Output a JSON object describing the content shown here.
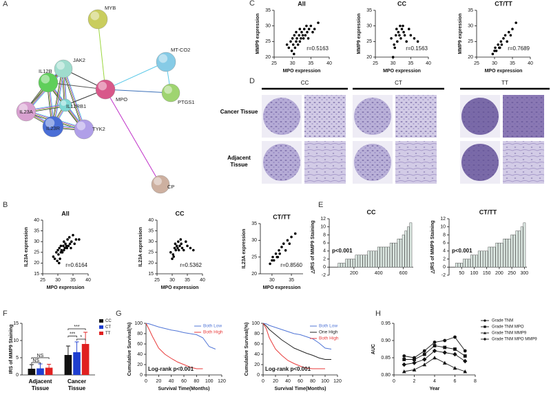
{
  "panels": [
    "A",
    "B",
    "C",
    "D",
    "E",
    "F",
    "G",
    "H"
  ],
  "network": {
    "nodes": [
      {
        "label": "MYB"
      },
      {
        "label": "MT-CO2"
      },
      {
        "label": "JAK2"
      },
      {
        "label": "IL12B"
      },
      {
        "label": "MPO"
      },
      {
        "label": "PTGS1"
      },
      {
        "label": "IL12RB1"
      },
      {
        "label": "IL23A"
      },
      {
        "label": "TYK2"
      },
      {
        "label": "IL23R"
      },
      {
        "label": "CP"
      }
    ]
  },
  "histology": {
    "genotypes": [
      "CC",
      "CT",
      "TT"
    ],
    "rows": [
      "Cancer Tissue",
      "Adjacent Tissue"
    ]
  },
  "chart_data": [
    {
      "type": "scatter",
      "title": "All",
      "xlabel": "MPO expression",
      "ylabel": "MMP9 expression",
      "annotation": "r=0.5163",
      "xlim": [
        25,
        40
      ],
      "xticks": [
        25,
        30,
        35,
        40
      ],
      "ylim": [
        20,
        35
      ],
      "yticks": [
        20,
        25,
        30,
        35
      ],
      "series": [
        {
          "color": "#000000",
          "x": [
            28.5,
            29,
            29.5,
            29.8,
            30,
            30.2,
            30.5,
            30.7,
            31,
            31,
            31.2,
            31.5,
            31.8,
            32,
            32,
            32.3,
            32.5,
            32.8,
            33,
            33.2,
            33.5,
            33.8,
            34,
            34.3,
            34.5,
            35,
            35.5,
            36,
            37,
            30.4
          ],
          "values": [
            24,
            23,
            25,
            22,
            26,
            24,
            27,
            23,
            25,
            28,
            26,
            24,
            27,
            25,
            29,
            26,
            28,
            27,
            26,
            29,
            27,
            30,
            28,
            26,
            29,
            30,
            28,
            29,
            31,
            21
          ]
        }
      ]
    },
    {
      "type": "scatter",
      "title": "CC",
      "xlabel": "MPO expression",
      "ylabel": "MMP9 expression",
      "annotation": "r=0.1563",
      "xlim": [
        25,
        40
      ],
      "xticks": [
        25,
        30,
        35,
        40
      ],
      "ylim": [
        20,
        35
      ],
      "yticks": [
        20,
        25,
        30,
        35
      ],
      "series": [
        {
          "color": "#000000",
          "x": [
            29.5,
            30,
            30.3,
            30.8,
            31,
            31.2,
            31.5,
            31.8,
            32,
            32.2,
            32.5,
            33,
            33.3,
            33.8,
            34.5,
            35,
            36,
            37,
            30.5,
            32.8
          ],
          "values": [
            26,
            20,
            24,
            27,
            29,
            25,
            28,
            27,
            30,
            26,
            29,
            28,
            27,
            25,
            29,
            27,
            26,
            25,
            23,
            30
          ]
        }
      ]
    },
    {
      "type": "scatter",
      "title": "CT/TT",
      "xlabel": "MPO expression",
      "ylabel": "MMP9 expression",
      "annotation": "r=0.7689",
      "xlim": [
        25,
        40
      ],
      "xticks": [
        25,
        30,
        35,
        40
      ],
      "ylim": [
        20,
        35
      ],
      "yticks": [
        20,
        25,
        30,
        35
      ],
      "series": [
        {
          "color": "#000000",
          "x": [
            29.5,
            30,
            30.2,
            30.5,
            31,
            31.3,
            31.8,
            32,
            32.5,
            33,
            33.5,
            34,
            34.5,
            35,
            36,
            31.5
          ],
          "values": [
            21,
            22,
            23,
            22,
            24,
            23,
            25,
            24,
            26,
            27,
            25,
            28,
            27,
            29,
            31,
            23
          ]
        }
      ]
    },
    {
      "type": "scatter",
      "title": "All",
      "xlabel": "MPO expression",
      "ylabel": "IL23A expression",
      "annotation": "r=0.6164",
      "xlim": [
        25,
        40
      ],
      "xticks": [
        25,
        30,
        35,
        40
      ],
      "ylim": [
        15,
        40
      ],
      "yticks": [
        15,
        20,
        25,
        30,
        35,
        40
      ],
      "series": [
        {
          "color": "#000000",
          "x": [
            28.5,
            29,
            29.5,
            29.8,
            30,
            30.2,
            30.5,
            30.7,
            31,
            31,
            31.2,
            31.5,
            31.8,
            32,
            32,
            32.3,
            32.5,
            32.8,
            33,
            33.2,
            33.5,
            33.8,
            34,
            34.3,
            34.5,
            35,
            35.5,
            36,
            37,
            30.4
          ],
          "values": [
            23,
            22,
            25,
            21,
            26,
            24,
            27,
            22,
            25,
            28,
            26,
            25,
            28,
            26,
            30,
            27,
            29,
            28,
            27,
            31,
            28,
            32,
            29,
            27,
            30,
            33,
            29,
            31,
            31,
            20
          ]
        }
      ]
    },
    {
      "type": "scatter",
      "title": "CC",
      "xlabel": "MPO expression",
      "ylabel": "IL23A expression",
      "annotation": "r=0.5362",
      "xlim": [
        25,
        40
      ],
      "xticks": [
        25,
        30,
        35,
        40
      ],
      "ylim": [
        15,
        40
      ],
      "yticks": [
        15,
        20,
        25,
        30,
        35,
        40
      ],
      "series": [
        {
          "color": "#000000",
          "x": [
            29.5,
            30,
            30.3,
            30.8,
            31,
            31.2,
            31.5,
            31.8,
            32,
            32.2,
            32.5,
            33,
            33.3,
            33.8,
            34.5,
            35,
            36,
            37,
            30.5,
            32.8
          ],
          "values": [
            25,
            22,
            24,
            27,
            29,
            26,
            28,
            27,
            30,
            26,
            28,
            29,
            27,
            26,
            30,
            28,
            27,
            26,
            23,
            31
          ]
        }
      ]
    },
    {
      "type": "scatter",
      "title": "CT/TT",
      "xlabel": "MPO expression",
      "ylabel": "IL23A expression",
      "annotation": "r=0.8560",
      "xlim": [
        27,
        38
      ],
      "xticks": [
        30,
        35
      ],
      "ylim": [
        20,
        35
      ],
      "yticks": [
        20,
        25,
        30,
        35
      ],
      "series": [
        {
          "color": "#000000",
          "x": [
            29.5,
            30,
            30.2,
            30.5,
            31,
            31.3,
            31.8,
            32,
            32.5,
            33,
            33.5,
            34,
            34.5,
            35,
            36,
            31.5
          ],
          "values": [
            23,
            24,
            25,
            24,
            26,
            25,
            27,
            26,
            28,
            29,
            27,
            30,
            29,
            31,
            32,
            25
          ]
        }
      ]
    },
    {
      "type": "bar",
      "title": "CC",
      "ylabel": "△IRS of MMP9 Staining",
      "annotation": "p<0.001",
      "xlim": [
        0,
        680
      ],
      "xticks": [
        200,
        400,
        600
      ],
      "ylim": [
        -2,
        12
      ],
      "yticks": [
        -2,
        0,
        2,
        4,
        6,
        8,
        10,
        12
      ],
      "x": [
        20,
        40,
        60,
        80,
        100,
        120,
        140,
        160,
        180,
        200,
        220,
        240,
        260,
        280,
        300,
        320,
        340,
        360,
        380,
        400,
        420,
        440,
        460,
        480,
        500,
        520,
        540,
        560,
        580,
        600,
        620,
        640,
        660
      ],
      "series": [
        {
          "color": "#dce8e2",
          "values": [
            0,
            0,
            0,
            1,
            1,
            1,
            2,
            2,
            2,
            2,
            3,
            3,
            3,
            3,
            3,
            4,
            4,
            4,
            4,
            5,
            5,
            5,
            5,
            5,
            6,
            6,
            6,
            7,
            7,
            8,
            9,
            10,
            11
          ]
        }
      ]
    },
    {
      "type": "bar",
      "title": "CT/TT",
      "ylabel": "△IRS of MMP9 Staining",
      "annotation": "p<0.001",
      "xlim": [
        0,
        310
      ],
      "xticks": [
        50,
        100,
        150,
        200,
        250,
        300
      ],
      "ylim": [
        -2,
        12
      ],
      "yticks": [
        -2,
        0,
        2,
        4,
        6,
        8,
        10,
        12
      ],
      "x": [
        10,
        20,
        30,
        40,
        50,
        60,
        70,
        80,
        90,
        100,
        110,
        120,
        130,
        140,
        150,
        160,
        170,
        180,
        190,
        200,
        210,
        220,
        230,
        240,
        250,
        260,
        270,
        280,
        290,
        300
      ],
      "series": [
        {
          "color": "#dce8e2",
          "values": [
            0,
            0,
            1,
            1,
            1,
            2,
            2,
            2,
            3,
            3,
            3,
            4,
            4,
            4,
            4,
            5,
            5,
            5,
            6,
            6,
            6,
            7,
            7,
            7,
            8,
            8,
            9,
            9,
            10,
            11
          ]
        }
      ]
    },
    {
      "type": "grouped_bar",
      "ylabel": "IRS of MMP9 Staining",
      "categories": [
        "Adjacent Tissue",
        "Cancer Tissue"
      ],
      "ylim": [
        0,
        15
      ],
      "yticks": [
        0,
        5,
        10,
        15
      ],
      "annotations": [
        "NS",
        "NS",
        "***",
        "***",
        "*"
      ],
      "series": [
        {
          "name": "CC",
          "color": "#111111",
          "values": [
            1.8,
            5.8
          ],
          "errors": [
            1.2,
            2.6
          ]
        },
        {
          "name": "CT",
          "color": "#1f3fd0",
          "values": [
            1.9,
            6.6
          ],
          "errors": [
            1.3,
            3.0
          ]
        },
        {
          "name": "TT",
          "color": "#e02020",
          "values": [
            2.1,
            9.0
          ],
          "errors": [
            1.0,
            3.4
          ]
        }
      ]
    },
    {
      "type": "survival",
      "xlabel": "Survival Time(Months)",
      "ylabel": "Cumulative Survival(%)",
      "annotation": "Log-rank p<0.001",
      "xlim": [
        0,
        120
      ],
      "xticks": [
        0,
        20,
        40,
        60,
        80,
        100,
        120
      ],
      "ylim": [
        0,
        100
      ],
      "yticks": [
        0,
        20,
        40,
        60,
        80,
        100
      ],
      "x": [
        0,
        5,
        10,
        20,
        30,
        40,
        50,
        60,
        70,
        80,
        90,
        100,
        110
      ],
      "series": [
        {
          "name": "Both Low",
          "color": "#4f74d6",
          "values": [
            100,
            99,
            97,
            93,
            90,
            87,
            85,
            82,
            80,
            78,
            72,
            55,
            50
          ]
        },
        {
          "name": "Both High",
          "color": "#e83a3a",
          "values": [
            100,
            88,
            75,
            52,
            40,
            32,
            25,
            20,
            15,
            12,
            12,
            null,
            null
          ]
        }
      ]
    },
    {
      "type": "survival",
      "xlabel": "Survival Time(Months)",
      "ylabel": "Cumulative Survival(%)",
      "annotation": "Log-rank p<0.001",
      "xlim": [
        0,
        120
      ],
      "xticks": [
        0,
        20,
        40,
        60,
        80,
        100,
        120
      ],
      "ylim": [
        0,
        100
      ],
      "yticks": [
        0,
        20,
        40,
        60,
        80,
        100
      ],
      "x": [
        0,
        5,
        10,
        20,
        30,
        40,
        50,
        60,
        70,
        80,
        90,
        100,
        110
      ],
      "series": [
        {
          "name": "Both Low",
          "color": "#4f74d6",
          "values": [
            100,
            99,
            96,
            92,
            88,
            84,
            80,
            78,
            74,
            70,
            62,
            52,
            50
          ]
        },
        {
          "name": "One High",
          "color": "#222222",
          "values": [
            100,
            95,
            88,
            78,
            68,
            60,
            52,
            47,
            42,
            38,
            33,
            30,
            30
          ]
        },
        {
          "name": "Both High",
          "color": "#e83a3a",
          "values": [
            100,
            90,
            72,
            50,
            38,
            28,
            22,
            17,
            13,
            12,
            12,
            12,
            null
          ]
        }
      ]
    },
    {
      "type": "line",
      "xlabel": "Year",
      "ylabel": "AUC",
      "xlim": [
        0,
        8
      ],
      "xticks": [
        0,
        2,
        4,
        6,
        8
      ],
      "ylim": [
        0.8,
        0.95
      ],
      "yticks": [
        {
          "value": 0.8,
          "label": "0.80"
        },
        {
          "value": 0.85,
          "label": "0.85"
        },
        {
          "value": 0.9,
          "label": "0.90"
        },
        {
          "value": 0.95,
          "label": "0.95"
        }
      ],
      "x": [
        1,
        2,
        3,
        4,
        5,
        6,
        7
      ],
      "series": [
        {
          "name": "Grade TNM",
          "color": "#111111",
          "marker": "circle",
          "values": [
            0.855,
            0.85,
            0.87,
            0.895,
            0.9,
            0.91,
            0.87
          ]
        },
        {
          "name": "Grade TNM MPO",
          "color": "#111111",
          "marker": "square",
          "values": [
            0.845,
            0.845,
            0.86,
            0.885,
            0.88,
            0.875,
            0.855
          ]
        },
        {
          "name": "Grade TNM MMP9",
          "color": "#111111",
          "marker": "triangle",
          "values": [
            0.81,
            0.815,
            0.83,
            0.85,
            0.835,
            0.82,
            0.81
          ]
        },
        {
          "name": "Grade TNM MPO MMP9",
          "color": "#111111",
          "marker": "diamond",
          "values": [
            0.83,
            0.835,
            0.845,
            0.87,
            0.865,
            0.86,
            0.84
          ]
        }
      ]
    }
  ]
}
